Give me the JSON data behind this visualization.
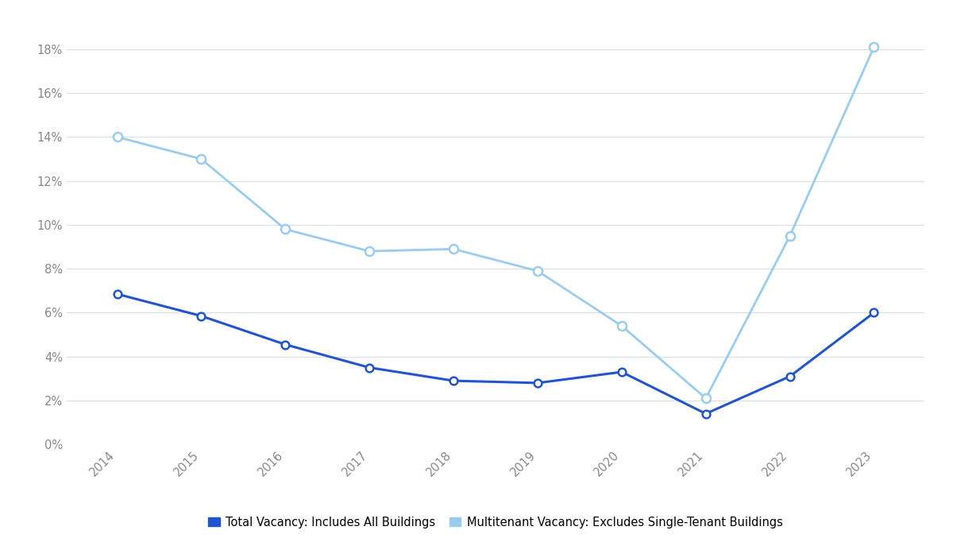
{
  "years": [
    2014,
    2015,
    2016,
    2017,
    2018,
    2019,
    2020,
    2021,
    2022,
    2023
  ],
  "total_vacancy": [
    0.0685,
    0.0585,
    0.0455,
    0.035,
    0.029,
    0.028,
    0.033,
    0.014,
    0.031,
    0.06
  ],
  "multitenant_vacancy": [
    0.14,
    0.13,
    0.098,
    0.088,
    0.089,
    0.079,
    0.054,
    0.021,
    0.095,
    0.181
  ],
  "total_color": "#2255cc",
  "multitenant_color": "#99ccee",
  "background_color": "#ffffff",
  "grid_color": "#d8dde8",
  "ylim": [
    0.0,
    0.195
  ],
  "yticks": [
    0.0,
    0.02,
    0.04,
    0.06,
    0.08,
    0.1,
    0.12,
    0.14,
    0.16,
    0.18
  ],
  "legend_total": "Total Vacancy: Includes All Buildings",
  "legend_multitenant": "Multitenant Vacancy: Excludes Single-Tenant Buildings"
}
